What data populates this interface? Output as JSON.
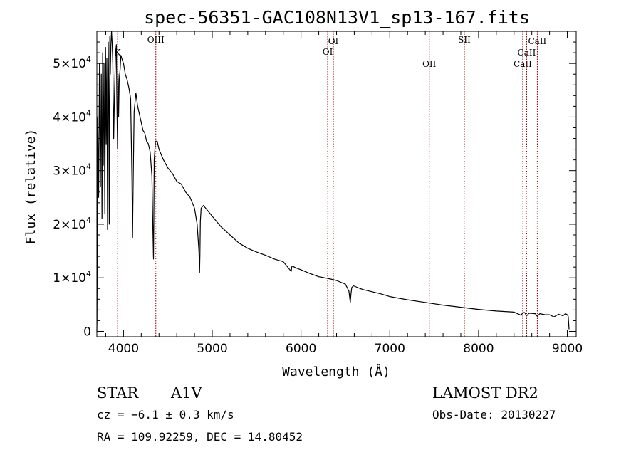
{
  "chart_data": {
    "type": "line",
    "title": "spec-56351-GAC108N13V1_sp13-167.fits",
    "xlabel": "Wavelength (Å)",
    "ylabel": "Flux (relative)",
    "xlim": [
      3700,
      9100
    ],
    "ylim": [
      -1000,
      56000
    ],
    "x_ticks": [
      4000,
      5000,
      6000,
      7000,
      8000,
      9000
    ],
    "y_ticks": [
      {
        "value": 0,
        "mantissa": "0",
        "exponent": ""
      },
      {
        "value": 10000,
        "mantissa": "1×10",
        "exponent": "4"
      },
      {
        "value": 20000,
        "mantissa": "2×10",
        "exponent": "4"
      },
      {
        "value": 30000,
        "mantissa": "3×10",
        "exponent": "4"
      },
      {
        "value": 40000,
        "mantissa": "4×10",
        "exponent": "4"
      },
      {
        "value": 50000,
        "mantissa": "5×10",
        "exponent": "4"
      }
    ],
    "series": [
      {
        "x": [
          3700,
          3702,
          3710,
          3720,
          3730,
          3740,
          3750,
          3758,
          3765,
          3772,
          3780,
          3790,
          3798,
          3805,
          3812,
          3820,
          3828,
          3835,
          3840,
          3846,
          3852,
          3858,
          3865,
          3872,
          3880,
          3889,
          3898,
          3910,
          3920,
          3925,
          3933,
          3939,
          3945,
          3952,
          3962,
          3970,
          3990,
          4000,
          4020,
          4040,
          4060,
          4080,
          4095,
          4102,
          4109,
          4120,
          4140,
          4160,
          4180,
          4200,
          4220,
          4240,
          4260,
          4280,
          4300,
          4320,
          4330,
          4338,
          4341,
          4346,
          4360,
          4380,
          4400,
          4450,
          4500,
          4550,
          4600,
          4650,
          4700,
          4750,
          4800,
          4830,
          4850,
          4857,
          4861,
          4866,
          4875,
          4900,
          4950,
          5000,
          5100,
          5200,
          5300,
          5400,
          5500,
          5600,
          5700,
          5800,
          5850,
          5890,
          5895,
          5900,
          5950,
          6000,
          6100,
          6200,
          6300,
          6400,
          6500,
          6540,
          6555,
          6563,
          6572,
          6590,
          6650,
          6700,
          6800,
          6900,
          7000,
          7200,
          7400,
          7600,
          7800,
          8000,
          8200,
          8400,
          8480,
          8498,
          8520,
          8542,
          8570,
          8640,
          8662,
          8690,
          8750,
          8800,
          8850,
          8900,
          8950,
          8980,
          9000,
          9010,
          9020
        ],
        "y": [
          0,
          2000,
          40000,
          25000,
          50000,
          27000,
          48000,
          21000,
          52000,
          31000,
          50000,
          22000,
          53000,
          35000,
          51000,
          19000,
          54000,
          42000,
          20000,
          55000,
          48000,
          53500,
          56000,
          54000,
          50000,
          36000,
          44000,
          52000,
          53500,
          44000,
          34000,
          48000,
          40000,
          47000,
          49000,
          51500,
          50500,
          50000,
          48000,
          47000,
          45500,
          43500,
          29000,
          17500,
          28000,
          41000,
          44500,
          42000,
          40500,
          39000,
          37500,
          37000,
          35500,
          35000,
          33500,
          29000,
          20000,
          13500,
          20000,
          32000,
          35500,
          35500,
          34000,
          32000,
          30500,
          29500,
          28000,
          27500,
          26000,
          25000,
          23000,
          20000,
          15000,
          11000,
          14000,
          20500,
          23000,
          23500,
          22500,
          21500,
          19500,
          18000,
          16500,
          15500,
          14800,
          14200,
          13500,
          13000,
          12000,
          11200,
          12000,
          12200,
          11800,
          11500,
          10800,
          10200,
          9900,
          9500,
          8800,
          7500,
          5400,
          7000,
          8200,
          8500,
          8100,
          7800,
          7400,
          7000,
          6500,
          5900,
          5400,
          4900,
          4500,
          4100,
          3800,
          3600,
          3000,
          3500,
          3500,
          2900,
          3400,
          3300,
          2800,
          3300,
          3100,
          3100,
          2700,
          3200,
          2900,
          3300,
          3100,
          2800,
          400
        ]
      }
    ],
    "lines": [
      {
        "x": 3934,
        "label": "K"
      },
      {
        "x": 4364,
        "label": "OIII"
      },
      {
        "x": 6300,
        "label": "OI"
      },
      {
        "x": 6364,
        "label": "OI"
      },
      {
        "x": 7445,
        "label": "OII"
      },
      {
        "x": 7840,
        "label": "SII"
      },
      {
        "x": 8498,
        "label": "CaII"
      },
      {
        "x": 8542,
        "label": "CaII"
      },
      {
        "x": 8662,
        "label": "CaII"
      }
    ],
    "line_color": "#8b0000",
    "spectrum_color": "#000000"
  },
  "info": {
    "object_class": "STAR",
    "subclass": "A1V",
    "survey": "LAMOST DR2",
    "cz": "cz = −6.1 ± 0.3 km/s",
    "obs_date": "Obs-Date: 20130227",
    "coords": "RA = 109.92259, DEC =  14.80452"
  }
}
